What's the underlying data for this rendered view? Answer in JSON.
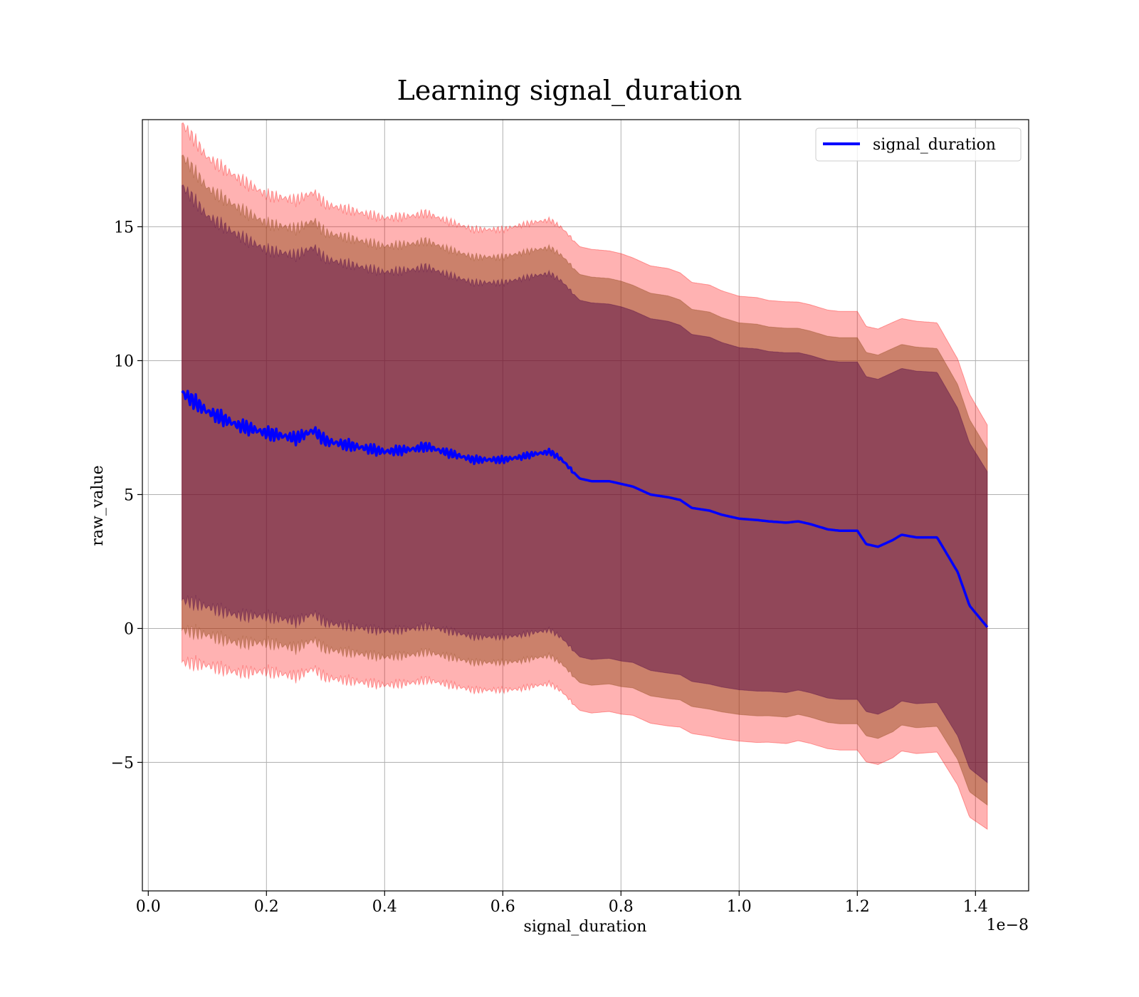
{
  "chart_data": {
    "type": "line",
    "title": "Learning signal_duration",
    "xlabel": "signal_duration",
    "ylabel": "raw_value",
    "x_offset_label": "1e−8",
    "x_tick_labels": [
      "0.0",
      "0.2",
      "0.4",
      "0.6",
      "0.8",
      "1.0",
      "1.2",
      "1.4"
    ],
    "y_tick_labels": [
      "−5",
      "0",
      "5",
      "10",
      "15"
    ],
    "xlim": [
      -0.01,
      1.49
    ],
    "ylim": [
      -9.8,
      19.0
    ],
    "grid": true,
    "legend_position": "top-right",
    "colors": {
      "line": "#0000ff",
      "band_outer": "#ff0000",
      "band_middle": "#8b4513",
      "band_inner": "#4b0044"
    },
    "series": [
      {
        "name": "signal_duration",
        "x": [
          0.057,
          0.07,
          0.1,
          0.15,
          0.2,
          0.25,
          0.28,
          0.3,
          0.35,
          0.4,
          0.45,
          0.47,
          0.5,
          0.55,
          0.6,
          0.63,
          0.65,
          0.68,
          0.7,
          0.73,
          0.75,
          0.78,
          0.8,
          0.82,
          0.85,
          0.88,
          0.9,
          0.92,
          0.95,
          0.97,
          1.0,
          1.03,
          1.05,
          1.08,
          1.1,
          1.12,
          1.15,
          1.17,
          1.2,
          1.215,
          1.235,
          1.26,
          1.275,
          1.3,
          1.335,
          1.37,
          1.39,
          1.42
        ],
        "y": [
          8.8,
          8.6,
          8.1,
          7.6,
          7.3,
          7.1,
          7.4,
          7.0,
          6.8,
          6.6,
          6.7,
          6.8,
          6.6,
          6.3,
          6.3,
          6.4,
          6.5,
          6.6,
          6.3,
          5.6,
          5.5,
          5.5,
          5.4,
          5.3,
          5.0,
          4.9,
          4.8,
          4.5,
          4.4,
          4.25,
          4.1,
          4.05,
          4.0,
          3.95,
          4.0,
          3.9,
          3.7,
          3.65,
          3.65,
          3.15,
          3.05,
          3.3,
          3.5,
          3.4,
          3.4,
          2.1,
          0.85,
          0.05
        ],
        "band_std": [
          8.6,
          8.45,
          8.1,
          7.9,
          7.6,
          7.6,
          7.6,
          7.55,
          7.5,
          7.45,
          7.45,
          7.45,
          7.4,
          7.35,
          7.35,
          7.4,
          7.4,
          7.4,
          7.4,
          7.4,
          7.4,
          7.35,
          7.35,
          7.3,
          7.3,
          7.3,
          7.25,
          7.2,
          7.2,
          7.15,
          7.1,
          7.1,
          7.05,
          7.05,
          7.0,
          7.0,
          7.0,
          7.0,
          7.0,
          6.95,
          6.95,
          6.95,
          6.9,
          6.9,
          6.85,
          6.8,
          6.75,
          6.45
        ]
      }
    ]
  }
}
